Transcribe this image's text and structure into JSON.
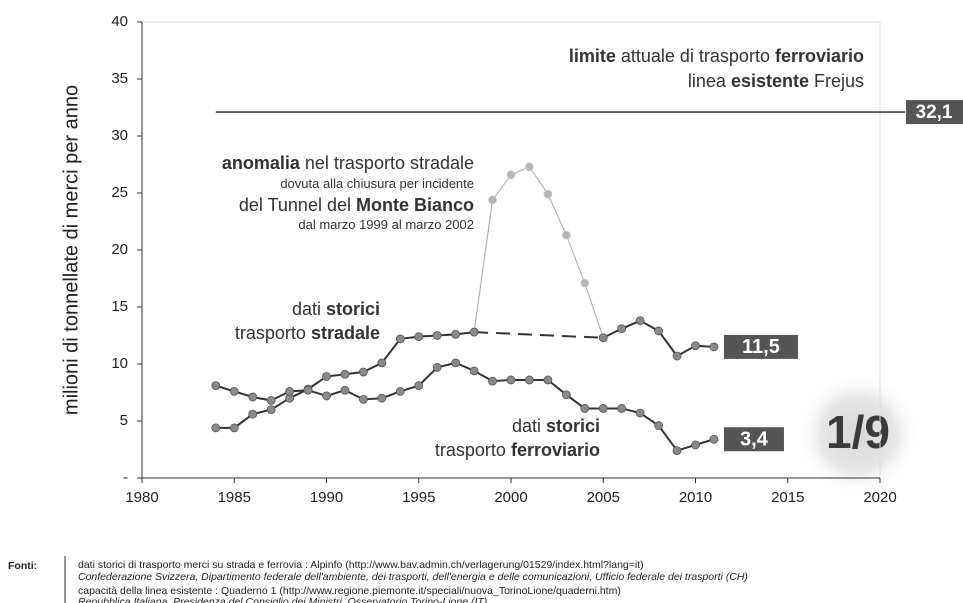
{
  "chart_data": {
    "type": "line",
    "y_label": "milioni di tonnellate di merci per anno",
    "x": [
      1984,
      1985,
      1986,
      1987,
      1988,
      1989,
      1990,
      1991,
      1992,
      1993,
      1994,
      1995,
      1996,
      1997,
      1998,
      1999,
      2000,
      2001,
      2002,
      2003,
      2004,
      2005,
      2006,
      2007,
      2008,
      2009,
      2010,
      2011
    ],
    "xlim": [
      1980,
      2020
    ],
    "xticks": [
      1980,
      1985,
      1990,
      1995,
      2000,
      2005,
      2010,
      2015,
      2020
    ],
    "ylim": [
      0,
      40
    ],
    "yticks": [
      {
        "value": 0,
        "label": "-"
      },
      5,
      10,
      15,
      20,
      25,
      30,
      35,
      40
    ],
    "gap_dashed": true,
    "series": [
      {
        "color": "#333333",
        "marker_color": "#8a8a8a",
        "values": [
          4.4,
          4.4,
          5.6,
          6.0,
          7.0,
          7.8,
          8.9,
          9.1,
          9.3,
          10.1,
          12.2,
          12.4,
          12.5,
          12.6,
          12.8,
          null,
          null,
          null,
          null,
          null,
          null,
          12.3,
          13.1,
          13.8,
          12.9,
          10.7,
          11.6,
          11.5
        ],
        "value_labels": [
          null,
          null,
          null,
          null,
          null,
          null,
          null,
          null,
          null,
          null,
          null,
          null,
          null,
          null,
          null,
          null,
          null,
          null,
          null,
          null,
          null,
          null,
          null,
          null,
          null,
          null,
          null,
          "11,5"
        ]
      },
      {
        "color": "#333333",
        "marker_color": "#8a8a8a",
        "values": [
          8.1,
          7.6,
          7.1,
          6.8,
          7.6,
          7.7,
          7.2,
          7.7,
          6.9,
          7.0,
          7.6,
          8.1,
          9.7,
          10.1,
          9.4,
          8.5,
          8.6,
          8.6,
          8.6,
          7.3,
          6.1,
          6.1,
          6.1,
          5.7,
          4.6,
          2.4,
          2.9,
          3.4
        ],
        "value_labels": [
          null,
          null,
          null,
          null,
          null,
          null,
          null,
          null,
          null,
          null,
          null,
          null,
          null,
          null,
          null,
          null,
          null,
          null,
          null,
          null,
          null,
          null,
          null,
          null,
          null,
          null,
          null,
          "3,4"
        ]
      },
      {
        "color": "#b5b5b5",
        "marker_color": "#b5b5b5",
        "values": [
          null,
          null,
          null,
          null,
          null,
          null,
          null,
          null,
          null,
          null,
          null,
          null,
          null,
          null,
          12.8,
          24.4,
          26.6,
          27.3,
          24.9,
          21.3,
          17.1,
          12.3,
          null,
          null,
          null,
          null,
          null,
          null
        ]
      }
    ],
    "limit": {
      "value": 32.1,
      "label": "32,1",
      "from_x": 1984
    },
    "annotations": {
      "limit": [
        [
          {
            "text": "limite",
            "bold": true
          },
          {
            "text": " attuale di trasporto ",
            "bold": false
          },
          {
            "text": "ferroviario",
            "bold": true
          }
        ],
        [
          {
            "text": "linea ",
            "bold": false
          },
          {
            "text": "esistente",
            "bold": true
          },
          {
            "text": " Frejus",
            "bold": false
          }
        ]
      ],
      "anomaly": [
        [
          {
            "text": "anomalia",
            "bold": true
          },
          {
            "text": " nel trasporto stradale",
            "bold": false
          }
        ],
        [
          {
            "text": "dovuta alla chiusura per incidente",
            "bold": false
          }
        ],
        [
          {
            "text": "del ",
            "bold": false
          },
          {
            "text": "Tunnel del ",
            "bold": false
          },
          {
            "text": "Monte Bianco",
            "bold": true
          }
        ],
        [
          {
            "text": "dal marzo 1999 al marzo 2002",
            "bold": false
          }
        ]
      ],
      "road": [
        [
          {
            "text": "dati ",
            "bold": false
          },
          {
            "text": "storici",
            "bold": true
          }
        ],
        [
          {
            "text": "trasporto ",
            "bold": false
          },
          {
            "text": "stradale",
            "bold": true
          }
        ]
      ],
      "rail": [
        [
          {
            "text": "dati ",
            "bold": false
          },
          {
            "text": "storici",
            "bold": true
          }
        ],
        [
          {
            "text": "trasporto ",
            "bold": false
          },
          {
            "text": "ferroviario",
            "bold": true
          }
        ]
      ]
    },
    "ratio": "1/9",
    "sources": {
      "heading": "Fonti:",
      "lines": [
        "dati storici di trasporto merci su strada e ferrovia :  Alpinfo (http://www.bav.admin.ch/verlagerung/01529/index.html?lang=it)",
        "Confederazione Svizzera, Dipartimento federale dell'ambiente, dei trasporti, dell'energia e delle comunicazioni, Ufficio federale dei trasporti (CH)",
        "capacità della linea esistente :  Quaderno 1 (http://www.regione.piemonte.it/speciali/nuova_TorinoLione/quaderni.htm)",
        "Repubblica Italiana, Presidenza del Consiglio dei Ministri, Osservatorio Torino-Lione (IT)"
      ]
    }
  }
}
